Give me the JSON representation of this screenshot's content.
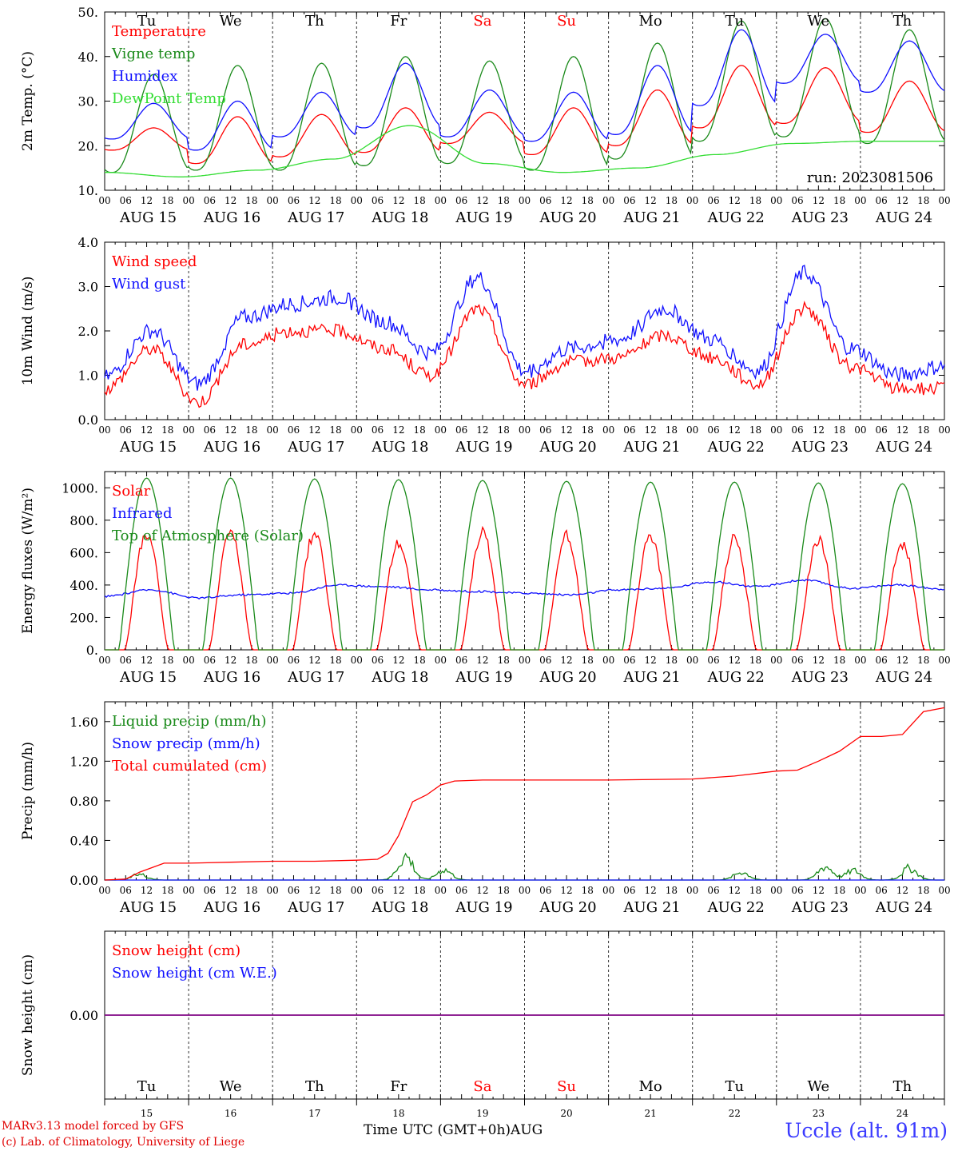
{
  "chart_data": {
    "type": "line",
    "run": "run: 2023081506",
    "day_names": [
      "Tu",
      "We",
      "Th",
      "Fr",
      "Sa",
      "Su",
      "Mo",
      "Tu",
      "We",
      "Th"
    ],
    "weekend_day_indices": [
      4,
      5
    ],
    "date_labels": [
      "AUG 15",
      "AUG 16",
      "AUG 17",
      "AUG 18",
      "AUG 19",
      "AUG 20",
      "AUG 21",
      "AUG 22",
      "AUG 23",
      "AUG 24"
    ],
    "hour_labels": [
      "00",
      "06",
      "12",
      "18"
    ],
    "day_numbers": [
      "15",
      "16",
      "17",
      "18",
      "19",
      "20",
      "21",
      "22",
      "23",
      "24"
    ],
    "x_title": "Time UTC (GMT+0h)AUG",
    "x_range_hours": [
      0,
      240
    ],
    "colors": {
      "red": "#ff0000",
      "green": "#1a8a1a",
      "blue": "#1010ff",
      "lightgreen": "#33dd33",
      "purple": "#800080"
    },
    "panels": [
      {
        "ylabel": "2m Temp. (°C)",
        "ylim": [
          10,
          50
        ],
        "ticks": [
          10,
          20,
          30,
          40,
          50
        ],
        "tick_labels": [
          "10.",
          "20.",
          "30.",
          "40.",
          "50."
        ],
        "series": [
          {
            "name": "Temperature",
            "color": "red",
            "kind": "diurnal",
            "min": [
              19,
              16,
              17.5,
              18.5,
              20.5,
              18,
              20,
              24,
              25,
              23
            ],
            "max": [
              24,
              26.5,
              27,
              28.5,
              27.5,
              28.5,
              32.5,
              38,
              37.5,
              34.5
            ]
          },
          {
            "name": "Vigne temp",
            "color": "green",
            "kind": "diurnal",
            "min": [
              14,
              14.5,
              14.5,
              15.5,
              16,
              14.5,
              17,
              21,
              22,
              20.5
            ],
            "max": [
              36,
              38,
              38.5,
              40,
              39,
              40,
              43,
              48,
              48.5,
              46
            ]
          },
          {
            "name": "Humidex",
            "color": "blue",
            "kind": "diurnal",
            "min": [
              21.5,
              19,
              22,
              24,
              22,
              21,
              22.5,
              29,
              34,
              32
            ],
            "max": [
              29.5,
              30,
              32,
              38.5,
              32.5,
              32,
              38,
              46,
              45,
              43.5
            ]
          },
          {
            "name": "DewPoint Temp",
            "color": "lightgreen",
            "kind": "daily",
            "daily": [
              14,
              13,
              14.5,
              17,
              24.5,
              16,
              14,
              15,
              18,
              20.5,
              21,
              21
            ]
          }
        ]
      },
      {
        "ylabel": "10m Wind (m/s)",
        "ylim": [
          0,
          4
        ],
        "ticks": [
          0,
          1,
          2,
          3,
          4
        ],
        "tick_labels": [
          "0.0",
          "1.0",
          "2.0",
          "3.0",
          "4.0"
        ],
        "series": [
          {
            "name": "Wind speed",
            "color": "red",
            "kind": "daily",
            "daily": [
              0.7,
              1.6,
              0.4,
              1.7,
              2.0,
              2.0,
              1.6,
              1.0,
              2.5,
              0.8,
              1.3,
              1.4,
              1.9,
              1.4,
              0.8,
              2.5,
              1.2,
              0.7,
              0.7
            ],
            "noise": 0.15
          },
          {
            "name": "Wind gust",
            "color": "blue",
            "kind": "daily",
            "daily": [
              0.95,
              2.0,
              0.8,
              2.3,
              2.6,
              2.75,
              2.2,
              1.5,
              3.2,
              1.1,
              1.6,
              1.8,
              2.5,
              1.8,
              1.1,
              3.3,
              1.6,
              1.0,
              1.2
            ],
            "noise": 0.18
          }
        ]
      },
      {
        "ylabel": "Energy fluxes (W/m²)",
        "ylim": [
          0,
          1100
        ],
        "ticks": [
          0,
          200,
          400,
          600,
          800,
          1000
        ],
        "tick_labels": [
          "0.",
          "200.",
          "400.",
          "600.",
          "800.",
          "1000."
        ],
        "series": [
          {
            "name": "Solar",
            "color": "red",
            "kind": "solar",
            "peaks": [
              760,
              760,
              760,
              700,
              760,
              740,
              730,
              720,
              720,
              690
            ]
          },
          {
            "name": "Infrared",
            "color": "blue",
            "kind": "daily",
            "daily": [
              330,
              370,
              320,
              340,
              350,
              400,
              390,
              370,
              360,
              350,
              340,
              370,
              380,
              420,
              390,
              430,
              380,
              400,
              375
            ],
            "noise": 6
          },
          {
            "name": "Top of Atmosphere (Solar)",
            "color": "green",
            "kind": "toa",
            "peaks": [
              1060,
              1060,
              1055,
              1050,
              1045,
              1040,
              1035,
              1035,
              1030,
              1025
            ]
          }
        ]
      },
      {
        "ylabel": "Precip (mm/h)",
        "ylim": [
          0,
          1.8
        ],
        "ticks": [
          0,
          0.4,
          0.8,
          1.2,
          1.6
        ],
        "tick_labels": [
          "0.00",
          "0.40",
          "0.80",
          "1.20",
          "1.60"
        ],
        "series": [
          {
            "name": "Liquid precip (mm/h)",
            "color": "green",
            "kind": "precip",
            "events": [
              [
                10,
                0.07
              ],
              [
                86,
                0.3
              ],
              [
                97,
                0.13
              ],
              [
                182,
                0.1
              ],
              [
                206,
                0.17
              ],
              [
                214,
                0.12
              ],
              [
                230,
                0.15
              ]
            ]
          },
          {
            "name": "Snow precip (mm/h)",
            "color": "blue",
            "kind": "flat",
            "value": 0
          },
          {
            "name": "Total cumulated (cm)",
            "color": "red",
            "kind": "points",
            "x": [
              0,
              6,
              10,
              17,
              24,
              36,
              48,
              60,
              72,
              78,
              81,
              84,
              88,
              92,
              96,
              100,
              108,
              120,
              144,
              168,
              180,
              192,
              198,
              204,
              210,
              216,
              222,
              228,
              234,
              240
            ],
            "y": [
              0,
              0.01,
              0.08,
              0.17,
              0.17,
              0.18,
              0.19,
              0.19,
              0.2,
              0.21,
              0.27,
              0.45,
              0.79,
              0.86,
              0.96,
              1.0,
              1.01,
              1.01,
              1.01,
              1.02,
              1.05,
              1.1,
              1.11,
              1.2,
              1.3,
              1.45,
              1.45,
              1.47,
              1.7,
              1.74
            ]
          }
        ]
      },
      {
        "ylabel": "Snow height (cm)",
        "ylim": [
          -1,
          1
        ],
        "ticks": [
          0
        ],
        "tick_labels": [
          "0.00"
        ],
        "series": [
          {
            "name": "Snow height (cm)",
            "color": "red",
            "kind": "flat",
            "value": 0
          },
          {
            "name": "Snow height (cm W.E.)",
            "color": "blue",
            "kind": "flat",
            "value": 0
          }
        ]
      }
    ]
  },
  "footer": {
    "credit1": "MARv3.13 model forced by GFS",
    "credit2": "(c) Lab. of Climatology, University of Liege",
    "station": "Uccle (alt. 91m)"
  }
}
